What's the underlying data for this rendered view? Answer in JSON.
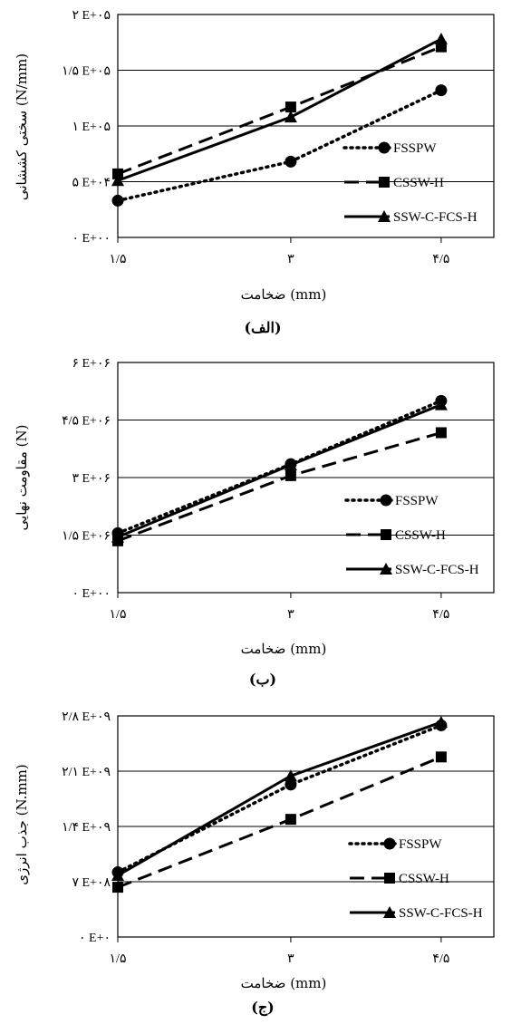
{
  "chart_data": [
    {
      "type": "line",
      "caption": "(الف)",
      "xlabel": "ضخامت (mm)",
      "ylabel": "سختی کششانی (N/mm)",
      "categories": [
        "۱/۵",
        "۳",
        "۴/۵"
      ],
      "ytick_labels": [
        "۰ E+۰۰",
        "۵ E+۰۴",
        "۱ E+۰۵",
        "۱/۵ E+۰۵",
        "۲ E+۰۵"
      ],
      "ylim": [
        0,
        200000
      ],
      "grid": true,
      "legend_position": "right",
      "series": [
        {
          "name": "FSSPW",
          "marker": "circle",
          "dash": "dotted",
          "values": [
            33000,
            68000,
            132000
          ]
        },
        {
          "name": "CSSW-H",
          "marker": "square",
          "dash": "dashed",
          "values": [
            57000,
            117000,
            171000
          ]
        },
        {
          "name": "SSW-C-FCS-H",
          "marker": "triangle",
          "dash": "solid",
          "values": [
            51000,
            108000,
            178000
          ]
        }
      ]
    },
    {
      "type": "line",
      "caption": "(ب)",
      "xlabel": "ضخامت (mm)",
      "ylabel": "مقاومت نهایی (N)",
      "categories": [
        "۱/۵",
        "۳",
        "۴/۵"
      ],
      "ytick_labels": [
        "۰ E+۰۰",
        "۱/۵ E+۰۶",
        "۳ E+۰۶",
        "۴/۵ E+۰۶",
        "۶ E+۰۶"
      ],
      "ylim": [
        0,
        6000000
      ],
      "grid": true,
      "legend_position": "right",
      "series": [
        {
          "name": "FSSPW",
          "marker": "circle",
          "dash": "dotted",
          "values": [
            1550000,
            3350000,
            5000000
          ]
        },
        {
          "name": "CSSW-H",
          "marker": "square",
          "dash": "dashed",
          "values": [
            1350000,
            3050000,
            4170000
          ]
        },
        {
          "name": "SSW-C-FCS-H",
          "marker": "triangle",
          "dash": "solid",
          "values": [
            1450000,
            3330000,
            4900000
          ]
        }
      ]
    },
    {
      "type": "line",
      "caption": "(ج)",
      "xlabel": "ضخامت (mm)",
      "ylabel": "جذب انرژی (N.mm)",
      "categories": [
        "۱/۵",
        "۳",
        "۴/۵"
      ],
      "ytick_labels": [
        "۰ E+۰",
        "۷ E+۰۸",
        "۱/۴ E+۰۹",
        "۲/۱ E+۰۹",
        "۲/۸ E+۰۹"
      ],
      "ylim": [
        0,
        2800000000
      ],
      "grid": true,
      "legend_position": "right",
      "series": [
        {
          "name": "FSSPW",
          "marker": "circle",
          "dash": "dotted",
          "values": [
            820000000,
            1930000000,
            2680000000
          ]
        },
        {
          "name": "CSSW-H",
          "marker": "square",
          "dash": "dashed",
          "values": [
            630000000,
            1490000000,
            2280000000
          ]
        },
        {
          "name": "SSW-C-FCS-H",
          "marker": "triangle",
          "dash": "solid",
          "values": [
            780000000,
            2040000000,
            2720000000
          ]
        }
      ]
    }
  ]
}
